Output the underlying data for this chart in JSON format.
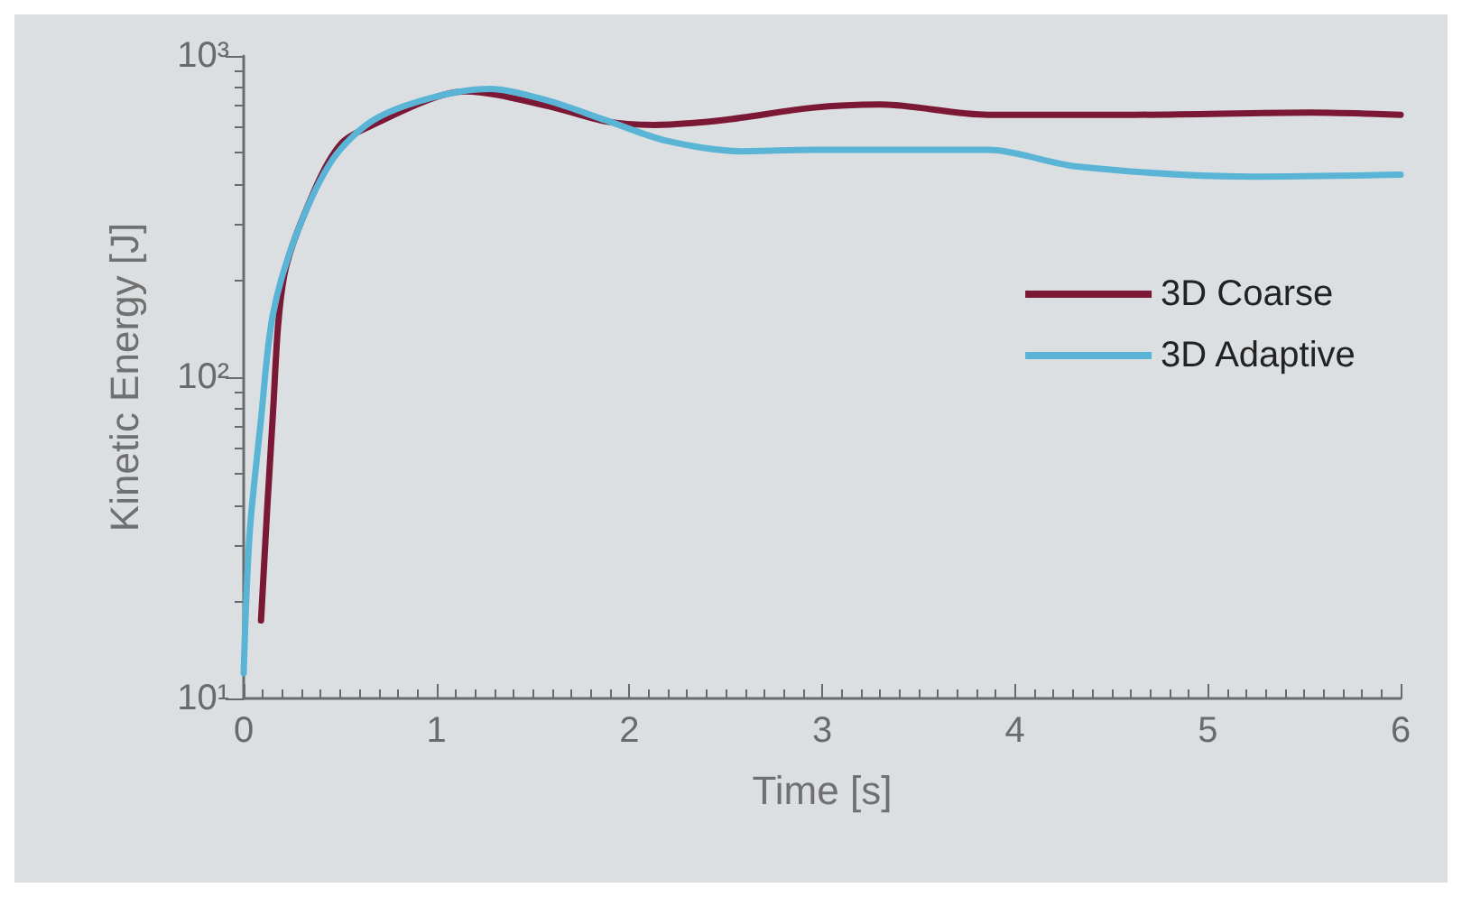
{
  "chart_data": {
    "type": "line",
    "xlabel": "Time [s]",
    "ylabel": "Kinetic Energy [J]",
    "log": "y",
    "xlim": [
      0,
      6
    ],
    "xticks": [
      0,
      1,
      2,
      3,
      4,
      5,
      6
    ],
    "ylim": [
      10,
      1000
    ],
    "yticks": [
      {
        "value": 10,
        "label": "10¹"
      },
      {
        "value": 100,
        "label": "10²"
      },
      {
        "value": 1000,
        "label": "10³"
      }
    ],
    "legend": "right",
    "marker": "none",
    "line_style": "solid",
    "series": [
      {
        "name": "3D Coarse",
        "color": "#7a1835",
        "x": [
          0.09,
          0.15,
          0.21,
          0.37,
          0.51,
          0.67,
          0.97,
          1.15,
          1.58,
          1.88,
          2.13,
          2.49,
          2.95,
          3.3,
          3.86,
          4.62,
          5.53,
          6.0
        ],
        "values": [
          17.5,
          74,
          207,
          385,
          537,
          610,
          735,
          776,
          698,
          625,
          610,
          632,
          690,
          706,
          656,
          656,
          666,
          656
        ]
      },
      {
        "name": "3D Adaptive",
        "color": "#5ab4d6",
        "x": [
          0.0,
          0.03,
          0.09,
          0.15,
          0.27,
          0.46,
          0.67,
          0.97,
          1.28,
          1.58,
          1.88,
          2.19,
          2.58,
          2.95,
          3.86,
          4.32,
          5.23,
          6.0
        ],
        "values": [
          12,
          32,
          74,
          155,
          275,
          475,
          630,
          740,
          790,
          725,
          630,
          545,
          505,
          510,
          510,
          453,
          421,
          427
        ]
      }
    ]
  }
}
